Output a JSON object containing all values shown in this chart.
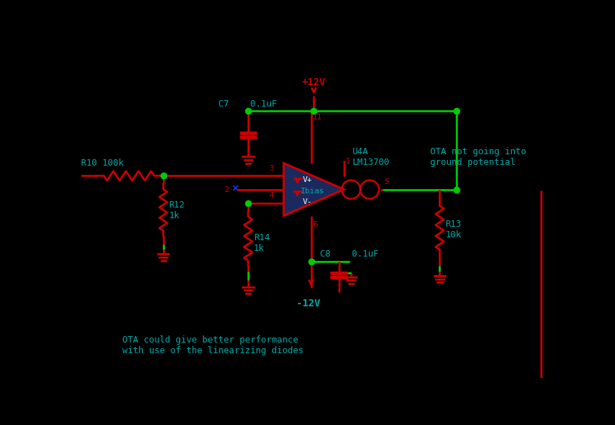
{
  "bg": "#000000",
  "rc": "#cc0000",
  "gc": "#00cc00",
  "lc": "#00aaaa",
  "vcc_line": "#00cc00",
  "annotation1": "OTA not going into\nground potential",
  "annotation2": "OTA could give better performance\nwith use of the linearizing diodes",
  "R10_label": "R10 100k",
  "R12_label": "R12\n1k",
  "R13_label": "R13\n10k",
  "R14_label": "R14\n1k",
  "C7_label": "C7    0.1uF",
  "C8_label": "C8    0.1uF",
  "U4A_label": "U4A\nLM13700",
  "Ibias_label": "Ibias",
  "vcc": "+12V",
  "vee": "-12V",
  "ota_fill": "#1a2a5e",
  "ota_edge": "#cc0000",
  "buf_color": "#cc0000",
  "note_color": "#0099cc"
}
